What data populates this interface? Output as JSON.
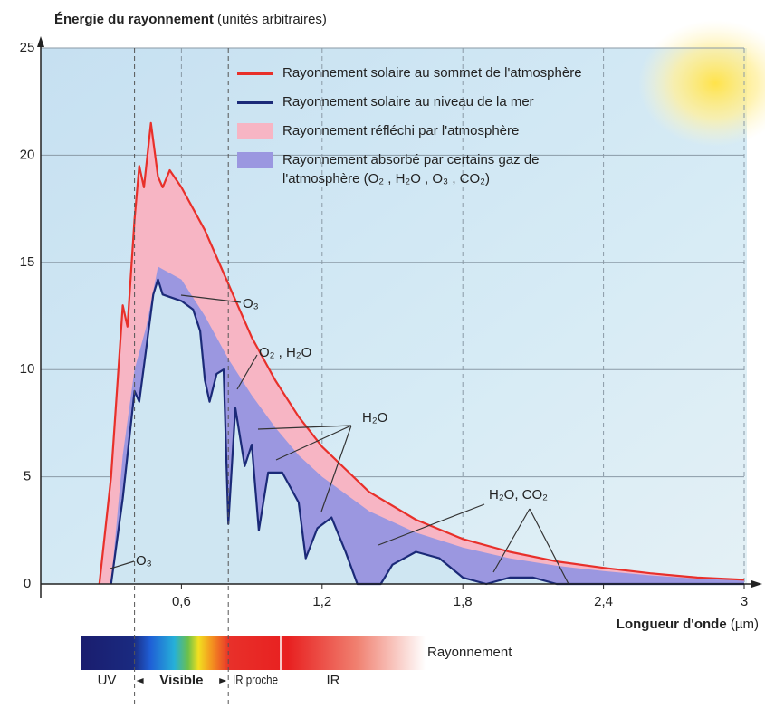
{
  "chart_data": {
    "type": "line",
    "y_label": "Énergie du rayonnement",
    "y_unit": "(unités arbitraires)",
    "x_label": "Longueur d'onde",
    "x_unit": "(µm)",
    "xlim": [
      0,
      3
    ],
    "ylim": [
      0,
      25
    ],
    "xticks": [
      {
        "value": 0.6,
        "label": "0,6"
      },
      {
        "value": 1.2,
        "label": "1,2"
      },
      {
        "value": 1.8,
        "label": "1,8"
      },
      {
        "value": 2.4,
        "label": "2,4"
      },
      3
    ],
    "yticks": [
      0,
      5,
      10,
      15,
      20,
      25
    ],
    "grid": true,
    "plot_background": "#cfe6f2",
    "series": [
      {
        "name": "Rayonnement solaire au sommet de l'atmosphère",
        "color": "#e8302a",
        "x": [
          0.25,
          0.3,
          0.35,
          0.37,
          0.4,
          0.42,
          0.44,
          0.47,
          0.5,
          0.52,
          0.55,
          0.6,
          0.7,
          0.8,
          0.9,
          1.0,
          1.1,
          1.2,
          1.4,
          1.6,
          1.8,
          2.0,
          2.2,
          2.4,
          2.6,
          2.8,
          3.0
        ],
        "values": [
          0,
          5,
          13,
          12,
          17,
          19.5,
          18.5,
          21.5,
          19,
          18.5,
          19.3,
          18.5,
          16.5,
          14,
          11.5,
          9.5,
          7.8,
          6.4,
          4.3,
          3.0,
          2.1,
          1.5,
          1.05,
          0.75,
          0.5,
          0.3,
          0.2
        ]
      },
      {
        "name": "Rayonnement solaire au niveau de la mer",
        "color": "#1b2a78",
        "x": [
          0.3,
          0.35,
          0.4,
          0.42,
          0.45,
          0.48,
          0.5,
          0.52,
          0.6,
          0.65,
          0.68,
          0.7,
          0.72,
          0.75,
          0.78,
          0.8,
          0.83,
          0.87,
          0.9,
          0.93,
          0.97,
          1.03,
          1.1,
          1.13,
          1.18,
          1.24,
          1.3,
          1.35,
          1.45,
          1.5,
          1.6,
          1.7,
          1.8,
          1.9,
          2.0,
          2.1,
          2.2,
          3.0
        ],
        "values": [
          0,
          4,
          9,
          8.5,
          11,
          13.5,
          14.2,
          13.5,
          13.2,
          12.8,
          11.8,
          9.5,
          8.5,
          9.8,
          10,
          2.8,
          8.2,
          5.5,
          6.5,
          2.5,
          5.2,
          5.2,
          3.8,
          1.2,
          2.6,
          3.1,
          1.5,
          0,
          0,
          0.9,
          1.5,
          1.2,
          0.3,
          0,
          0.3,
          0.3,
          0,
          0
        ]
      },
      {
        "name": "Rayonnement réfléchi par l'atmosphère",
        "color": "#f7b5c4"
      },
      {
        "name": "Rayonnement absorbé par certains gaz de l'atmosphère (O₂ , H₂O , O₃ , CO₂)",
        "color": "#9b97e0",
        "x": [
          0.3,
          0.35,
          0.4,
          0.45,
          0.5,
          0.55,
          0.6,
          0.7,
          0.8,
          0.9,
          1.0,
          1.1,
          1.2,
          1.4,
          1.6,
          1.8,
          2.0,
          2.2,
          2.4,
          2.6,
          2.8,
          3.0
        ],
        "values": [
          0,
          6,
          10,
          12,
          14.8,
          14.5,
          14.2,
          12.5,
          10.5,
          8.8,
          7.3,
          6,
          5,
          3.4,
          2.4,
          1.7,
          1.2,
          0.85,
          0.6,
          0.4,
          0.25,
          0.15
        ]
      }
    ],
    "annotations": [
      "O₃",
      "O₃",
      "O₂ , H₂O",
      "H₂O",
      "H₂O, CO₂"
    ],
    "spectrum": {
      "label": "Rayonnement",
      "bands": [
        "UV",
        "Visible",
        "IR proche",
        "IR"
      ],
      "visible_range": [
        0.4,
        0.8
      ]
    }
  }
}
